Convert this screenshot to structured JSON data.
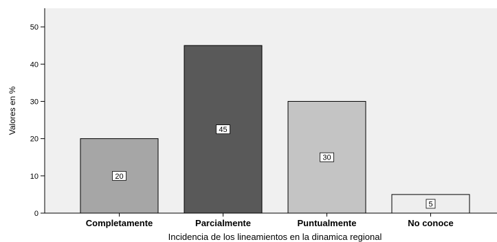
{
  "chart_data": {
    "type": "bar",
    "categories": [
      "Completamente",
      "Parcialmente",
      "Puntualmente",
      "No conoce"
    ],
    "values": [
      20,
      45,
      30,
      5
    ],
    "data_labels": [
      "20",
      "45",
      "30",
      "5"
    ],
    "bar_colors": [
      "#a6a6a6",
      "#595959",
      "#c4c4c4",
      "#eeeeee"
    ],
    "title": "",
    "xlabel": "Incidencia de los lineamientos en la dinamica regional",
    "ylabel": "Valores en %",
    "ylim": [
      0,
      55
    ],
    "yticks": [
      0,
      10,
      20,
      30,
      40,
      50
    ],
    "ytick_labels": [
      "0",
      "10",
      "20",
      "30",
      "40",
      "50"
    ],
    "grid": false,
    "plot_background": "#f0f0f0"
  }
}
